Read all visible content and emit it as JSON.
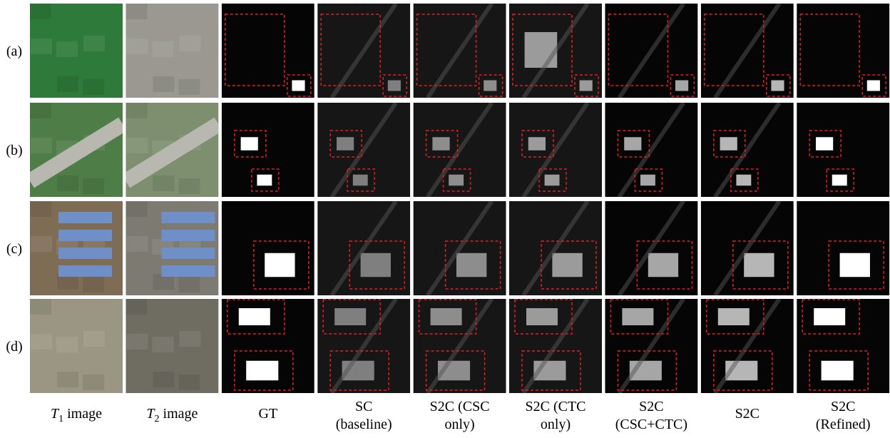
{
  "rows": [
    "(a)",
    "(b)",
    "(c)",
    "(d)"
  ],
  "columns": [
    {
      "var": "T",
      "sub": "1",
      "line1": "image"
    },
    {
      "var": "T",
      "sub": "2",
      "line1": "image"
    },
    {
      "line1": "GT"
    },
    {
      "line1": "SC",
      "line2": "(baseline)"
    },
    {
      "line1": "S2C (CSC",
      "line2": "only)"
    },
    {
      "line1": "S2C (CTC",
      "line2": "only)"
    },
    {
      "line1": "S2C",
      "line2": "(CSC+CTC)"
    },
    {
      "line1": "S2C"
    },
    {
      "line1": "S2C",
      "line2": "(Refined)"
    }
  ]
}
